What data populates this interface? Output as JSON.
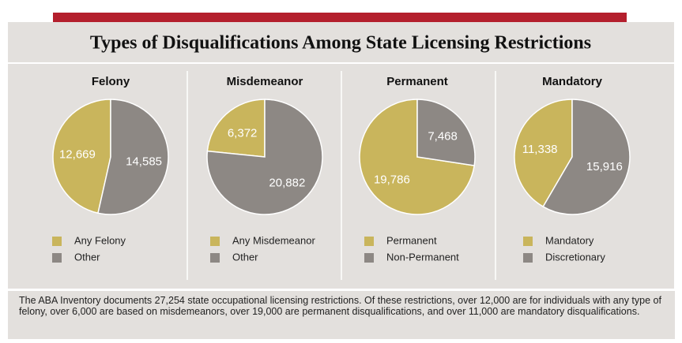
{
  "title": "Types of Disqualifications Among State Licensing Restrictions",
  "note": "The ABA Inventory documents 27,254 state occupational licensing restrictions. Of these restrictions, over 12,000 are for individuals with any type of felony, over 6,000 are based on misdemeanors, over 19,000 are permanent disqualifications, and over 11,000 are mandatory disqualifications.",
  "chart_data": [
    {
      "type": "pie",
      "title": "Felony",
      "labels": [
        "Any Felony",
        "Other"
      ],
      "values": [
        12669,
        14585
      ],
      "value_labels": [
        "12,669",
        "14,585"
      ],
      "colors": [
        "#c9b55c",
        "#8d8884"
      ]
    },
    {
      "type": "pie",
      "title": "Misdemeanor",
      "labels": [
        "Any Misdemeanor",
        "Other"
      ],
      "values": [
        6372,
        20882
      ],
      "value_labels": [
        "6,372",
        "20,882"
      ],
      "colors": [
        "#c9b55c",
        "#8d8884"
      ]
    },
    {
      "type": "pie",
      "title": "Permanent",
      "labels": [
        "Permanent",
        "Non-Permanent"
      ],
      "values": [
        19786,
        7468
      ],
      "value_labels": [
        "19,786",
        "7,468"
      ],
      "colors": [
        "#c9b55c",
        "#8d8884"
      ]
    },
    {
      "type": "pie",
      "title": "Mandatory",
      "labels": [
        "Mandatory",
        "Discretionary"
      ],
      "values": [
        11338,
        15916
      ],
      "value_labels": [
        "11,338",
        "15,916"
      ],
      "colors": [
        "#c9b55c",
        "#8d8884"
      ]
    }
  ]
}
